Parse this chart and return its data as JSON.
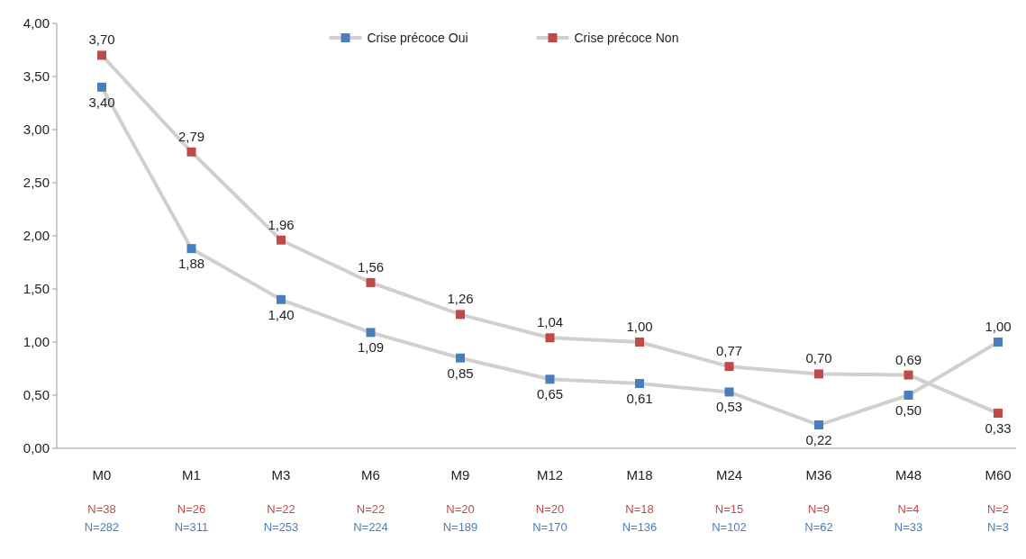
{
  "chart_data": {
    "type": "line",
    "categories": [
      "M0",
      "M1",
      "M3",
      "M6",
      "M9",
      "M12",
      "M18",
      "M24",
      "M36",
      "M48",
      "M60"
    ],
    "series": [
      {
        "name": "Crise précoce Oui",
        "color": "#4a7ebb",
        "values": [
          3.4,
          1.88,
          1.4,
          1.09,
          0.85,
          0.65,
          0.61,
          0.53,
          0.22,
          0.5,
          1.0
        ],
        "value_labels": [
          "3,40",
          "1,88",
          "1,40",
          "1,09",
          "0,85",
          "0,65",
          "0,61",
          "0,53",
          "0,22",
          "0,50",
          "1,00"
        ]
      },
      {
        "name": "Crise précoce Non",
        "color": "#be4b48",
        "values": [
          3.7,
          2.79,
          1.96,
          1.56,
          1.26,
          1.04,
          1.0,
          0.77,
          0.7,
          0.69,
          0.33
        ],
        "value_labels": [
          "3,70",
          "2,79",
          "1,96",
          "1,56",
          "1,26",
          "1,04",
          "1,00",
          "0,77",
          "0,70",
          "0,69",
          "0,33"
        ]
      }
    ],
    "ylim": [
      0,
      4
    ],
    "yticks": [
      {
        "value": 0,
        "label": "0,00"
      },
      {
        "value": 0.5,
        "label": "0,50"
      },
      {
        "value": 1,
        "label": "1,00"
      },
      {
        "value": 1.5,
        "label": "1,50"
      },
      {
        "value": 2,
        "label": "2,00"
      },
      {
        "value": 2.5,
        "label": "2,50"
      },
      {
        "value": 3,
        "label": "3,00"
      },
      {
        "value": 3.5,
        "label": "3,50"
      },
      {
        "value": 4,
        "label": "4,00"
      }
    ],
    "grid": false,
    "legend": "top",
    "marker": "square",
    "line_style": "solid",
    "annotations": [
      "N=38",
      "N=282",
      "N=26",
      "N=311",
      "N=22",
      "N=253",
      "N=22",
      "N=224",
      "N=20",
      "N=189",
      "N=20",
      "N=170",
      "N=18",
      "N=136",
      "N=15",
      "N=102",
      "N=9",
      "N=62",
      "N=4",
      "N=33",
      "N=2",
      "N=3"
    ]
  }
}
